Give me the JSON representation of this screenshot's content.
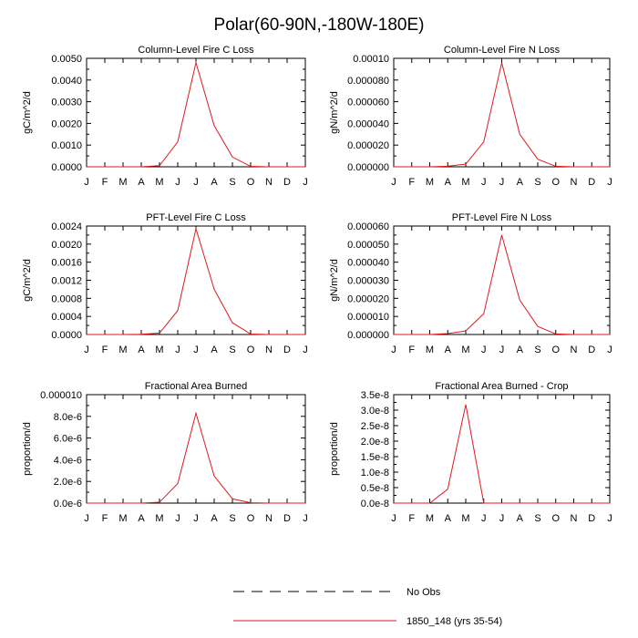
{
  "figure_title": "Polar(60-90N,-180W-180E)",
  "legend": {
    "entries": [
      {
        "label": "No Obs",
        "style": "dashed",
        "color": "#000000"
      },
      {
        "label": "1850_148 (yrs 35-54)",
        "style": "solid",
        "color": "#e0191e"
      }
    ]
  },
  "chart_data": [
    {
      "type": "line",
      "title": "Column-Level Fire C Loss",
      "ylabel": "gC/m^2/d",
      "categories": [
        "J",
        "F",
        "M",
        "A",
        "M",
        "J",
        "J",
        "A",
        "S",
        "O",
        "N",
        "D",
        "J"
      ],
      "yticks": [
        "0.0000",
        "0.0010",
        "0.0020",
        "0.0030",
        "0.0040",
        "0.0050"
      ],
      "ylim": [
        0,
        0.005
      ],
      "series": [
        {
          "color": "#e0191e",
          "values": [
            0,
            0,
            0,
            0,
            5e-05,
            0.00115,
            0.0048,
            0.0019,
            0.00045,
            2e-05,
            0,
            0,
            0
          ]
        }
      ]
    },
    {
      "type": "line",
      "title": "Column-Level Fire N Loss",
      "ylabel": "gN/m^2/d",
      "categories": [
        "J",
        "F",
        "M",
        "A",
        "M",
        "J",
        "J",
        "A",
        "S",
        "O",
        "N",
        "D",
        "J"
      ],
      "yticks": [
        "0.000000",
        "0.000020",
        "0.000040",
        "0.000060",
        "0.000080",
        "0.00010"
      ],
      "ylim": [
        0,
        0.0001
      ],
      "series": [
        {
          "color": "#e0191e",
          "values": [
            0,
            0,
            0,
            5e-07,
            2.5e-06,
            2.3e-05,
            9.6e-05,
            3e-05,
            7e-06,
            5e-07,
            0,
            0,
            0
          ]
        }
      ]
    },
    {
      "type": "line",
      "title": "PFT-Level Fire C Loss",
      "ylabel": "gC/m^2/d",
      "categories": [
        "J",
        "F",
        "M",
        "A",
        "M",
        "J",
        "J",
        "A",
        "S",
        "O",
        "N",
        "D",
        "J"
      ],
      "yticks": [
        "0.0000",
        "0.0004",
        "0.0008",
        "0.0012",
        "0.0016",
        "0.0020",
        "0.0024"
      ],
      "ylim": [
        0,
        0.0024
      ],
      "series": [
        {
          "color": "#e0191e",
          "values": [
            0,
            0,
            0,
            5e-06,
            3e-05,
            0.00053,
            0.00234,
            0.001,
            0.00026,
            1e-05,
            0,
            0,
            0
          ]
        }
      ]
    },
    {
      "type": "line",
      "title": "PFT-Level Fire N Loss",
      "ylabel": "gN/m^2/d",
      "categories": [
        "J",
        "F",
        "M",
        "A",
        "M",
        "J",
        "J",
        "A",
        "S",
        "O",
        "N",
        "D",
        "J"
      ],
      "yticks": [
        "0.000000",
        "0.000010",
        "0.000020",
        "0.000030",
        "0.000040",
        "0.000050",
        "0.000060"
      ],
      "ylim": [
        0,
        6e-05
      ],
      "series": [
        {
          "color": "#e0191e",
          "values": [
            0,
            0,
            0,
            5e-07,
            2e-06,
            1.15e-05,
            5.5e-05,
            1.9e-05,
            4.5e-06,
            3e-07,
            0,
            0,
            0
          ]
        }
      ]
    },
    {
      "type": "line",
      "title": "Fractional Area Burned",
      "ylabel": "proportion/d",
      "categories": [
        "J",
        "F",
        "M",
        "A",
        "M",
        "J",
        "J",
        "A",
        "S",
        "O",
        "N",
        "D",
        "J"
      ],
      "yticks": [
        "0.0e-6",
        "2.0e-6",
        "4.0e-6",
        "6.0e-6",
        "8.0e-6",
        "0.000010"
      ],
      "ylim": [
        0,
        1e-05
      ],
      "series": [
        {
          "color": "#e0191e",
          "values": [
            0,
            0,
            0,
            0,
            8e-08,
            1.8e-06,
            8.3e-06,
            2.5e-06,
            4e-07,
            3e-08,
            0,
            0,
            0
          ]
        }
      ]
    },
    {
      "type": "line",
      "title": "Fractional Area Burned - Crop",
      "ylabel": "proportion/d",
      "categories": [
        "J",
        "F",
        "M",
        "A",
        "M",
        "J",
        "J",
        "A",
        "S",
        "O",
        "N",
        "D",
        "J"
      ],
      "yticks": [
        "0.0e-8",
        "0.5e-8",
        "1.0e-8",
        "1.5e-8",
        "2.0e-8",
        "2.5e-8",
        "3.0e-8",
        "3.5e-8"
      ],
      "ylim": [
        0,
        3.5e-08
      ],
      "series": [
        {
          "color": "#e0191e",
          "values": [
            0,
            0,
            0,
            4.5e-09,
            3.18e-08,
            0,
            0,
            0,
            0,
            0,
            0,
            0,
            0
          ]
        }
      ]
    }
  ]
}
